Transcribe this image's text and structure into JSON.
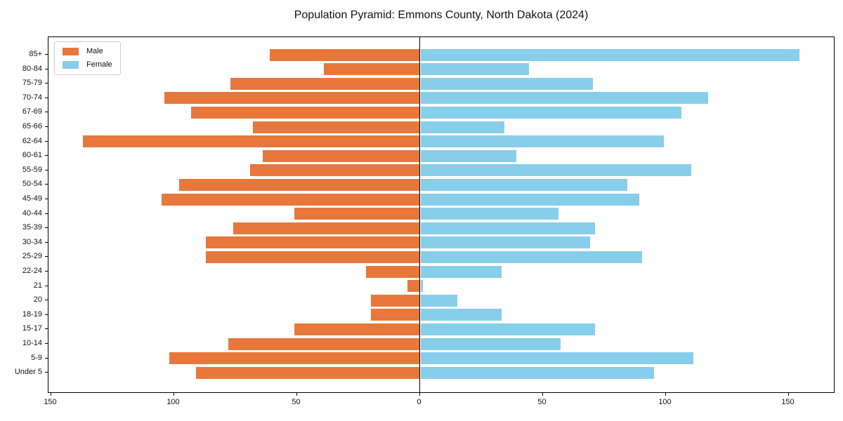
{
  "title": "Population Pyramid: Emmons County, North Dakota (2024)",
  "legend": {
    "male_label": "Male",
    "female_label": "Female"
  },
  "colors": {
    "male": "#e8773b",
    "female": "#87ceeb",
    "axis": "#000000",
    "legend_border": "#cccccc",
    "background": "#ffffff"
  },
  "chart_data": {
    "type": "bar",
    "subtype": "population-pyramid",
    "title": "Population Pyramid: Emmons County, North Dakota (2024)",
    "xlabel": "",
    "ylabel": "",
    "grid": false,
    "legend_position": "upper left",
    "categories": [
      "85+",
      "80-84",
      "75-79",
      "70-74",
      "67-69",
      "65-66",
      "62-64",
      "60-61",
      "55-59",
      "50-54",
      "45-49",
      "40-44",
      "35-39",
      "30-34",
      "25-29",
      "22-24",
      "21",
      "20",
      "18-19",
      "15-17",
      "10-14",
      "5-9",
      "Under 5"
    ],
    "series": [
      {
        "name": "Male",
        "side": "left",
        "color": "#e8773b",
        "values": [
          61,
          39,
          77,
          104,
          93,
          68,
          137,
          64,
          69,
          98,
          105,
          51,
          76,
          87,
          87,
          22,
          5,
          20,
          20,
          51,
          78,
          102,
          91
        ]
      },
      {
        "name": "Female",
        "side": "right",
        "color": "#87ceeb",
        "values": [
          154,
          44,
          70,
          117,
          106,
          34,
          99,
          39,
          110,
          84,
          89,
          56,
          71,
          69,
          90,
          33,
          1,
          15,
          33,
          71,
          57,
          111,
          95
        ]
      }
    ],
    "x_ticks": [
      -150,
      -100,
      -50,
      0,
      50,
      100,
      150
    ],
    "x_tick_labels": [
      "150",
      "100",
      "50",
      "0",
      "50",
      "100",
      "150"
    ],
    "xlim": [
      -151,
      169
    ]
  }
}
